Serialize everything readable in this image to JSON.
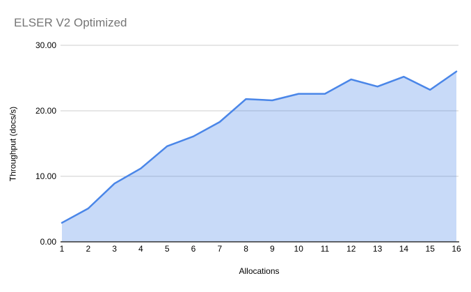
{
  "chart_data": {
    "type": "area",
    "title": "ELSER V2 Optimized",
    "xlabel": "Allocations",
    "ylabel": "Throughput (docs/s)",
    "categories": [
      "1",
      "2",
      "3",
      "4",
      "5",
      "6",
      "7",
      "8",
      "9",
      "10",
      "11",
      "12",
      "13",
      "14",
      "15",
      "16"
    ],
    "series": [
      {
        "name": "Throughput",
        "values": [
          2.9,
          5.1,
          8.9,
          11.2,
          14.6,
          16.1,
          18.3,
          21.8,
          21.6,
          22.6,
          22.6,
          24.8,
          23.7,
          25.2,
          23.2,
          26.0
        ]
      }
    ],
    "ylim": [
      0,
      30
    ],
    "yticks": [
      0,
      10,
      20,
      30
    ],
    "ytick_labels": [
      "0.00",
      "10.00",
      "20.00",
      "30.00"
    ],
    "grid": true,
    "legend": "none",
    "colors": {
      "line": "#4a86e8",
      "fill": "#4a86e8",
      "fill_opacity": 0.3,
      "gridline": "#cccccc",
      "axis_line": "#333333",
      "tick_text": "#000000",
      "title_text": "#757575"
    }
  }
}
